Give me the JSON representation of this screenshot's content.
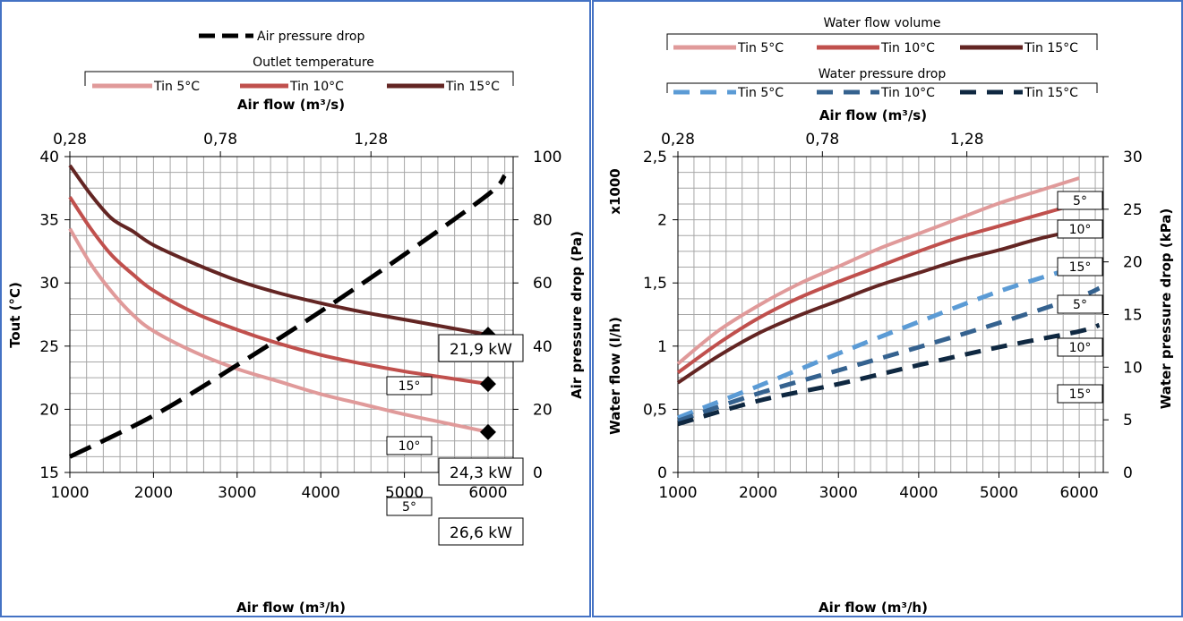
{
  "chart_data": [
    {
      "type": "line",
      "legend_air": {
        "title": "",
        "entries": [
          {
            "label": "Air pressure drop",
            "color": "#000000",
            "dashed": true
          }
        ]
      },
      "legend_temp": {
        "title": "Outlet temperature",
        "entries": [
          {
            "label": "Tin 5°C",
            "color": "#e09a9a"
          },
          {
            "label": "Tin 10°C",
            "color": "#c0504d"
          },
          {
            "label": "Tin 15°C",
            "color": "#632523"
          }
        ]
      },
      "x_bottom": {
        "label": "Air flow (m³/h)",
        "ticks": [
          "1000",
          "2000",
          "3000",
          "4000",
          "5000",
          "6000"
        ],
        "lim": [
          1000,
          6300
        ]
      },
      "x_top": {
        "label": "Air flow (m³/s)",
        "ticks": [
          "0,28",
          "0,78",
          "1,28"
        ],
        "tick_positions_m3h": [
          1000,
          2800,
          4600
        ]
      },
      "y_left": {
        "label": "Tout (°C)",
        "ticks": [
          "15",
          "20",
          "25",
          "30",
          "35",
          "40"
        ],
        "lim": [
          15,
          40
        ]
      },
      "y_right": {
        "label": "Air pressure drop (Pa)",
        "ticks": [
          "0",
          "20",
          "40",
          "60",
          "80",
          "100"
        ],
        "lim": [
          0,
          100
        ]
      },
      "series": [
        {
          "name": "Tin 5°C",
          "color": "#e09a9a",
          "axis": "left",
          "x": [
            1000,
            1250,
            1500,
            1750,
            2000,
            2500,
            3000,
            3500,
            4000,
            4500,
            5000,
            5500,
            6000
          ],
          "y": [
            34.3,
            31.5,
            29.3,
            27.5,
            26.2,
            24.5,
            23.2,
            22.2,
            21.2,
            20.4,
            19.6,
            18.9,
            18.2
          ]
        },
        {
          "name": "Tin 10°C",
          "color": "#c0504d",
          "axis": "left",
          "x": [
            1000,
            1250,
            1500,
            1750,
            2000,
            2500,
            3000,
            3500,
            4000,
            4500,
            5000,
            5500,
            6000
          ],
          "y": [
            36.8,
            34.3,
            32.2,
            30.7,
            29.4,
            27.6,
            26.3,
            25.2,
            24.3,
            23.6,
            23.0,
            22.5,
            22.0
          ]
        },
        {
          "name": "Tin 15°C",
          "color": "#632523",
          "axis": "left",
          "x": [
            1000,
            1250,
            1500,
            1750,
            2000,
            2500,
            3000,
            3500,
            4000,
            4500,
            5000,
            5500,
            6000
          ],
          "y": [
            39.3,
            37.0,
            35.1,
            34.1,
            33.0,
            31.5,
            30.2,
            29.2,
            28.4,
            27.7,
            27.1,
            26.5,
            25.9
          ]
        },
        {
          "name": "Air pressure drop",
          "color": "#000000",
          "axis": "right",
          "dashed": true,
          "x": [
            1000,
            2000,
            3000,
            4000,
            5000,
            6000,
            6200
          ],
          "y": [
            5,
            18,
            34,
            51,
            69,
            88,
            94
          ]
        }
      ],
      "markers": [
        {
          "x": 6000,
          "y": 25.9,
          "axis": "left"
        },
        {
          "x": 6000,
          "y": 22.0,
          "axis": "left"
        },
        {
          "x": 6000,
          "y": 18.2,
          "axis": "left"
        }
      ],
      "annotations": {
        "callouts": [
          "21,9 kW",
          "24,3 kW",
          "26,6 kW"
        ],
        "tags": [
          "15°",
          "10°",
          "5°"
        ]
      }
    },
    {
      "type": "line",
      "legend_flow": {
        "title": "Water flow volume",
        "entries": [
          {
            "label": "Tin 5°C",
            "color": "#e09a9a"
          },
          {
            "label": "Tin 10°C",
            "color": "#c0504d"
          },
          {
            "label": "Tin 15°C",
            "color": "#632523"
          }
        ]
      },
      "legend_wpd": {
        "title": "Water pressure drop",
        "entries": [
          {
            "label": "Tin 5°C",
            "color": "#5b9bd5",
            "dashed": true
          },
          {
            "label": "Tin 10°C",
            "color": "#35628f",
            "dashed": true
          },
          {
            "label": "Tin 15°C",
            "color": "#0f2841",
            "dashed": true
          }
        ]
      },
      "x_bottom": {
        "label": "Air flow (m³/h)",
        "ticks": [
          "1000",
          "2000",
          "3000",
          "4000",
          "5000",
          "6000"
        ],
        "lim": [
          1000,
          6300
        ]
      },
      "x_top": {
        "label": "Air flow  (m³/s)",
        "ticks": [
          "0,28",
          "0,78",
          "1,28"
        ],
        "tick_positions_m3h": [
          1000,
          2800,
          4600
        ]
      },
      "y_left": {
        "label": "Water flow (l/h)",
        "multiplier": "x1000",
        "ticks": [
          "0",
          "0,5",
          "1",
          "1,5",
          "2",
          "2,5"
        ],
        "lim": [
          0,
          2.5
        ]
      },
      "y_right": {
        "label": "Water pressure drop (kPa)",
        "ticks": [
          "0",
          "5",
          "10",
          "15",
          "20",
          "25",
          "30"
        ],
        "lim": [
          0,
          30
        ]
      },
      "series": [
        {
          "name": "Tin 5°C",
          "color": "#e09a9a",
          "axis": "left",
          "x": [
            1000,
            1500,
            2000,
            2500,
            3000,
            3500,
            4000,
            4500,
            5000,
            5500,
            6000
          ],
          "y": [
            0.86,
            1.12,
            1.32,
            1.49,
            1.63,
            1.77,
            1.89,
            2.01,
            2.13,
            2.23,
            2.33
          ]
        },
        {
          "name": "Tin 10°C",
          "color": "#c0504d",
          "axis": "left",
          "x": [
            1000,
            1500,
            2000,
            2500,
            3000,
            3500,
            4000,
            4500,
            5000,
            5500,
            6000
          ],
          "y": [
            0.79,
            1.02,
            1.22,
            1.38,
            1.51,
            1.63,
            1.75,
            1.86,
            1.95,
            2.04,
            2.13
          ]
        },
        {
          "name": "Tin 15°C",
          "color": "#632523",
          "axis": "left",
          "x": [
            1000,
            1500,
            2000,
            2500,
            3000,
            3500,
            4000,
            4500,
            5000,
            5500,
            6000
          ],
          "y": [
            0.71,
            0.92,
            1.1,
            1.24,
            1.36,
            1.48,
            1.58,
            1.68,
            1.76,
            1.85,
            1.92
          ]
        },
        {
          "name": "Tin 5°C",
          "color": "#5b9bd5",
          "axis": "right",
          "dashed": true,
          "x": [
            1000,
            2000,
            3000,
            4000,
            5000,
            6000,
            6250
          ],
          "y": [
            5.2,
            8.2,
            11.3,
            14.3,
            17.2,
            19.6,
            20.3
          ]
        },
        {
          "name": "Tin 10°C",
          "color": "#35628f",
          "axis": "right",
          "dashed": true,
          "x": [
            1000,
            2000,
            3000,
            4000,
            5000,
            6000,
            6250
          ],
          "y": [
            4.9,
            7.5,
            9.7,
            11.9,
            14.2,
            16.7,
            17.5
          ]
        },
        {
          "name": "Tin 15°C",
          "color": "#0f2841",
          "axis": "right",
          "dashed": true,
          "x": [
            1000,
            2000,
            3000,
            4000,
            5000,
            6000,
            6250
          ],
          "y": [
            4.6,
            6.8,
            8.4,
            10.2,
            11.9,
            13.4,
            14.0
          ]
        }
      ],
      "annotations": {
        "tags": [
          "5°",
          "10°",
          "15°",
          "5°",
          "10°",
          "15°"
        ]
      }
    }
  ]
}
